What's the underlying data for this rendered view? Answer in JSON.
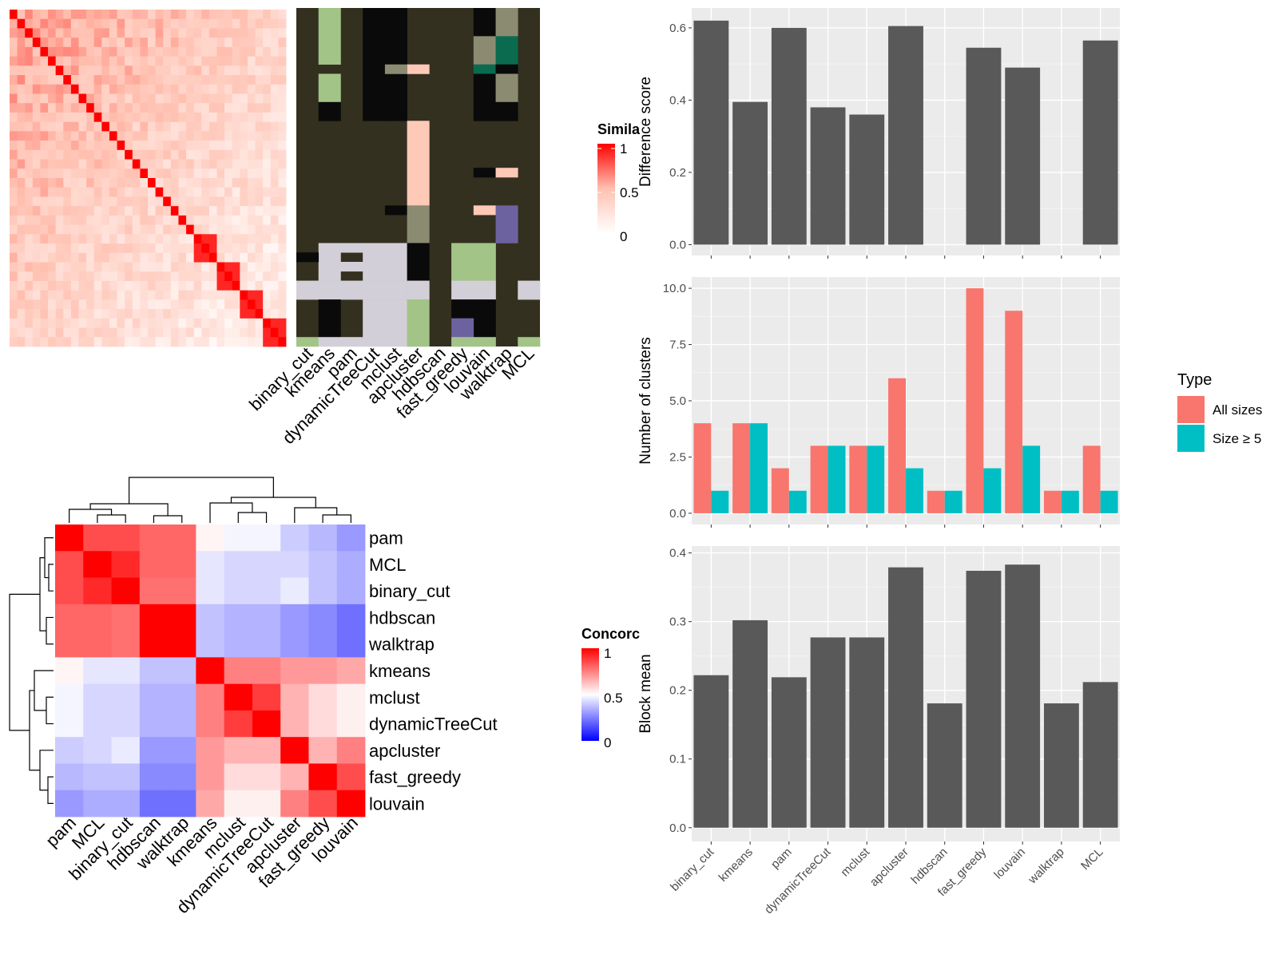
{
  "chart_data": [
    {
      "id": "similarity_heatmap",
      "type": "heatmap",
      "legend_title": "Simila",
      "legend_ticks": [
        "1",
        "0.5",
        "0"
      ],
      "n_cells": 36
    },
    {
      "id": "cluster_membership",
      "type": "heatmap",
      "columns": [
        "binary_cut",
        "kmeans",
        "pam",
        "dynamicTreeCut",
        "mclust",
        "apcluster",
        "hdbscan",
        "fast_greedy",
        "louvain",
        "walktrap",
        "MCL"
      ]
    },
    {
      "id": "concordance_heatmap",
      "type": "heatmap",
      "rows": [
        "pam",
        "MCL",
        "binary_cut",
        "hdbscan",
        "walktrap",
        "kmeans",
        "mclust",
        "dynamicTreeCut",
        "apcluster",
        "fast_greedy",
        "louvain"
      ],
      "columns": [
        "pam",
        "MCL",
        "binary_cut",
        "hdbscan",
        "walktrap",
        "kmeans",
        "mclust",
        "dynamicTreeCut",
        "apcluster",
        "fast_greedy",
        "louvain"
      ],
      "legend_title": "Concorc",
      "legend_ticks": [
        "1",
        "0.5",
        "0"
      ],
      "values": [
        [
          1.0,
          0.85,
          0.85,
          0.8,
          0.8,
          0.52,
          0.48,
          0.48,
          0.4,
          0.36,
          0.3
        ],
        [
          0.85,
          1.0,
          0.92,
          0.8,
          0.8,
          0.45,
          0.42,
          0.42,
          0.42,
          0.38,
          0.34
        ],
        [
          0.85,
          0.92,
          1.0,
          0.78,
          0.78,
          0.45,
          0.42,
          0.42,
          0.46,
          0.38,
          0.34
        ],
        [
          0.8,
          0.8,
          0.78,
          1.0,
          1.0,
          0.38,
          0.35,
          0.35,
          0.3,
          0.27,
          0.22
        ],
        [
          0.8,
          0.8,
          0.78,
          1.0,
          1.0,
          0.38,
          0.35,
          0.35,
          0.3,
          0.27,
          0.22
        ],
        [
          0.52,
          0.45,
          0.45,
          0.38,
          0.38,
          1.0,
          0.75,
          0.75,
          0.7,
          0.7,
          0.67
        ],
        [
          0.48,
          0.42,
          0.42,
          0.35,
          0.35,
          0.75,
          1.0,
          0.88,
          0.65,
          0.57,
          0.53
        ],
        [
          0.48,
          0.42,
          0.42,
          0.35,
          0.35,
          0.75,
          0.88,
          1.0,
          0.65,
          0.57,
          0.53
        ],
        [
          0.4,
          0.42,
          0.46,
          0.3,
          0.3,
          0.7,
          0.65,
          0.65,
          1.0,
          0.65,
          0.75
        ],
        [
          0.36,
          0.38,
          0.38,
          0.27,
          0.27,
          0.7,
          0.57,
          0.57,
          0.65,
          1.0,
          0.85
        ],
        [
          0.3,
          0.34,
          0.34,
          0.22,
          0.22,
          0.67,
          0.53,
          0.53,
          0.75,
          0.85,
          1.0
        ]
      ]
    },
    {
      "id": "difference_score",
      "type": "bar",
      "categories": [
        "binary_cut",
        "kmeans",
        "pam",
        "dynamicTreeCut",
        "mclust",
        "apcluster",
        "hdbscan",
        "fast_greedy",
        "louvain",
        "walktrap",
        "MCL"
      ],
      "values": [
        0.62,
        0.395,
        0.6,
        0.38,
        0.36,
        0.605,
        0,
        0.545,
        0.49,
        0,
        0.565
      ],
      "ylabel": "Difference score",
      "ylim": [
        -0.03,
        0.655
      ],
      "yticks": [
        0.0,
        0.2,
        0.4,
        0.6
      ],
      "ytick_labels": [
        "0.0",
        "0.2",
        "0.4",
        "0.6"
      ],
      "color": "#595959"
    },
    {
      "id": "number_of_clusters",
      "type": "bar",
      "categories": [
        "binary_cut",
        "kmeans",
        "pam",
        "dynamicTreeCut",
        "mclust",
        "apcluster",
        "hdbscan",
        "fast_greedy",
        "louvain",
        "walktrap",
        "MCL"
      ],
      "series": [
        {
          "name": "All sizes",
          "values": [
            4,
            4,
            2,
            3,
            3,
            6,
            1,
            10,
            9,
            1,
            3
          ],
          "color": "#F8766D"
        },
        {
          "name": "Size ≥ 5",
          "values": [
            1,
            4,
            1,
            3,
            3,
            2,
            1,
            2,
            3,
            1,
            1
          ],
          "color": "#00BFC4"
        }
      ],
      "ylabel": "Number of clusters",
      "ylim": [
        -0.5,
        10.5
      ],
      "yticks": [
        0.0,
        2.5,
        5.0,
        7.5,
        10.0
      ],
      "ytick_labels": [
        "0.0",
        "2.5",
        "5.0",
        "7.5",
        "10.0"
      ],
      "legend_title": "Type",
      "legend_position": "right"
    },
    {
      "id": "block_mean",
      "type": "bar",
      "categories": [
        "binary_cut",
        "kmeans",
        "pam",
        "dynamicTreeCut",
        "mclust",
        "apcluster",
        "hdbscan",
        "fast_greedy",
        "louvain",
        "walktrap",
        "MCL"
      ],
      "values": [
        0.222,
        0.302,
        0.219,
        0.277,
        0.277,
        0.379,
        0.181,
        0.374,
        0.383,
        0.181,
        0.212
      ],
      "ylabel": "Block mean",
      "ylim": [
        -0.02,
        0.41
      ],
      "yticks": [
        0.0,
        0.1,
        0.2,
        0.3,
        0.4
      ],
      "ytick_labels": [
        "0.0",
        "0.1",
        "0.2",
        "0.3",
        "0.4"
      ],
      "color": "#595959"
    }
  ]
}
